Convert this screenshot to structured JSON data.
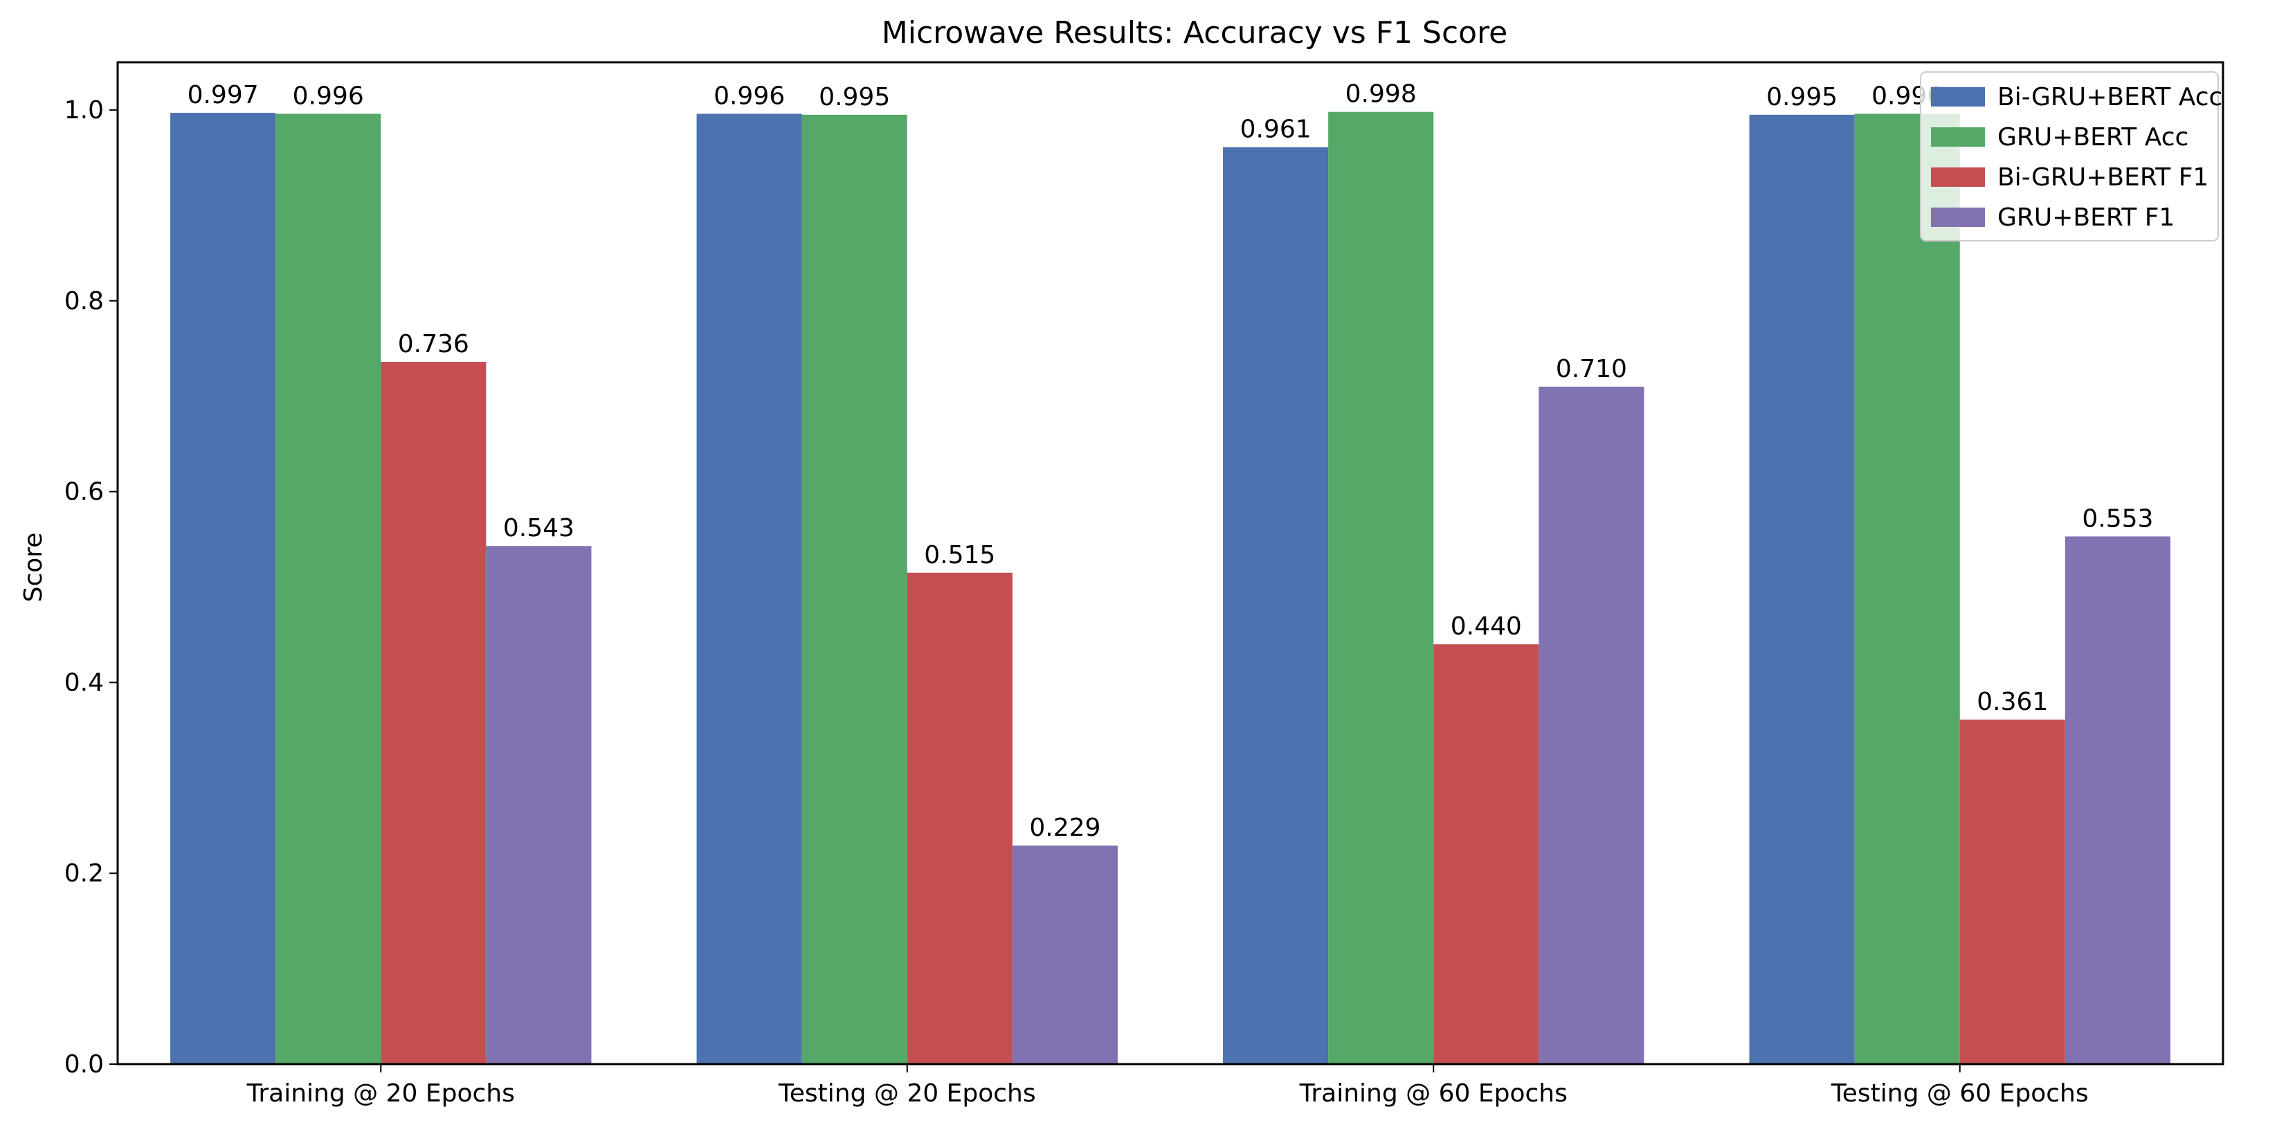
{
  "chart_data": {
    "type": "bar",
    "title": "Microwave Results: Accuracy vs F1 Score",
    "xlabel": "",
    "ylabel": "Score",
    "ylim": [
      0,
      1.05
    ],
    "yticks": [
      "0.0",
      "0.2",
      "0.4",
      "0.6",
      "0.8",
      "1.0"
    ],
    "categories": [
      "Training @ 20 Epochs",
      "Testing @ 20 Epochs",
      "Training @ 60 Epochs",
      "Testing @ 60 Epochs"
    ],
    "series": [
      {
        "name": "Bi-GRU+BERT Acc",
        "color": "#4c72b0",
        "values": [
          0.997,
          0.996,
          0.961,
          0.995
        ],
        "labels": [
          "0.997",
          "0.996",
          "0.961",
          "0.995"
        ]
      },
      {
        "name": "GRU+BERT Acc",
        "color": "#55a868",
        "values": [
          0.996,
          0.995,
          0.998,
          0.996
        ],
        "labels": [
          "0.996",
          "0.995",
          "0.998",
          "0.996"
        ]
      },
      {
        "name": "Bi-GRU+BERT F1",
        "color": "#c44e52",
        "values": [
          0.736,
          0.515,
          0.44,
          0.361
        ],
        "labels": [
          "0.736",
          "0.515",
          "0.440",
          "0.361"
        ]
      },
      {
        "name": "GRU+BERT F1",
        "color": "#8172b2",
        "values": [
          0.543,
          0.229,
          0.71,
          0.553
        ],
        "labels": [
          "0.543",
          "0.229",
          "0.710",
          "0.553"
        ]
      }
    ],
    "grid": false,
    "legend_position": "top-right"
  }
}
